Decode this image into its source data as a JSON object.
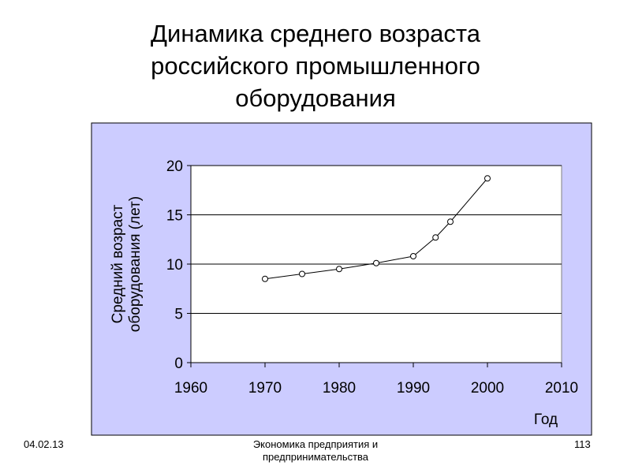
{
  "title_lines": [
    "Динамика среднего возраста",
    "российского промышленного",
    "оборудования"
  ],
  "footer": {
    "date": "04.02.13",
    "center_line1": "Экономика предприятия и",
    "center_line2": "предпринимательства",
    "page": "113"
  },
  "colors": {
    "panel": "#ccccff",
    "plot": "#ffffff",
    "line": "#000000"
  },
  "chart_data": {
    "type": "line",
    "title": "Динамика среднего возраста российского промышленного оборудования",
    "xlabel": "Год",
    "ylabel_lines": [
      "Средний возраст",
      "оборудования (лет)"
    ],
    "xlim": [
      1960,
      2010
    ],
    "ylim": [
      0,
      20
    ],
    "xticks": [
      1960,
      1970,
      1980,
      1990,
      2000,
      2010
    ],
    "yticks": [
      0,
      5,
      10,
      15,
      20
    ],
    "grid": "horizontal",
    "series": [
      {
        "x": [
          1970,
          1975,
          1980,
          1985,
          1990,
          1993,
          1995,
          2000
        ],
        "y": [
          8.5,
          9.0,
          9.5,
          10.1,
          10.8,
          12.7,
          14.3,
          18.7
        ]
      }
    ]
  }
}
